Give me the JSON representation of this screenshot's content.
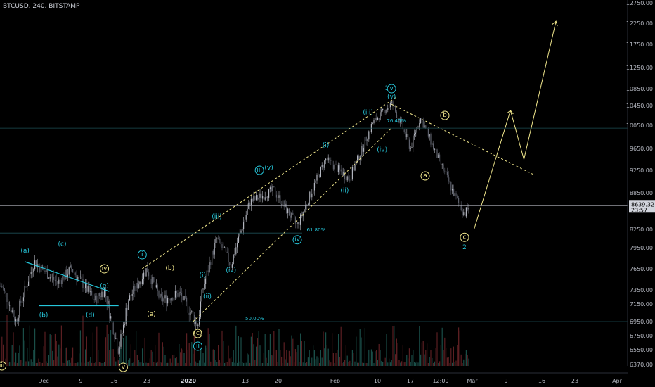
{
  "header": {
    "title": "BTCUSD, 240, BITSTAMP"
  },
  "price_box": {
    "value": "8639.32",
    "countdown": "23:57"
  },
  "colors": {
    "background": "#000000",
    "up": "#b2b5be",
    "down": "#5d606b",
    "vol_up": "#1e5c55",
    "vol_down": "#6b2428",
    "cyan": "#26c6da",
    "yellow": "#f0e68c",
    "label_cyan": "#26c6da",
    "price_line": "#b2b5be"
  },
  "chart_data": {
    "type": "candlestick",
    "title": "BTCUSD, 240, BITSTAMP",
    "ylim": [
      6300,
      12800
    ],
    "y_ticks": [
      "12750.00",
      "12250.00",
      "11750.00",
      "11250.00",
      "10850.00",
      "10450.00",
      "10050.00",
      "9650.00",
      "9250.00",
      "8850.00",
      "8250.00",
      "7950.00",
      "7650.00",
      "7350.00",
      "7150.00",
      "6950.00",
      "6750.00",
      "6550.00",
      "6370.00"
    ],
    "x_ticks": [
      "Dec",
      "9",
      "16",
      "23",
      "2020",
      "13",
      "20",
      "Feb",
      "10",
      "17",
      "12:00",
      "Mar",
      "9",
      "16",
      "23",
      "Apr"
    ],
    "last_price": 8639.32,
    "price_path": [
      {
        "date": "Nov 22",
        "price": 7400
      },
      {
        "date": "Nov 25",
        "price": 6950
      },
      {
        "date": "Nov 29",
        "price": 7750
      },
      {
        "date": "Dec 4",
        "price": 7450
      },
      {
        "date": "Dec 7",
        "price": 7650
      },
      {
        "date": "Dec 12",
        "price": 7200
      },
      {
        "date": "Dec 14",
        "price": 7350
      },
      {
        "date": "Dec 17",
        "price": 6550
      },
      {
        "date": "Dec 19",
        "price": 7200
      },
      {
        "date": "Dec 23",
        "price": 7650
      },
      {
        "date": "Dec 26",
        "price": 7200
      },
      {
        "date": "Dec 30",
        "price": 7300
      },
      {
        "date": "Jan 3",
        "price": 6900
      },
      {
        "date": "Jan 4",
        "price": 7350
      },
      {
        "date": "Jan 7",
        "price": 8100
      },
      {
        "date": "Jan 10",
        "price": 7700
      },
      {
        "date": "Jan 14",
        "price": 8700
      },
      {
        "date": "Jan 19",
        "price": 8900
      },
      {
        "date": "Jan 24",
        "price": 8300
      },
      {
        "date": "Jan 30",
        "price": 9450
      },
      {
        "date": "Feb 4",
        "price": 9100
      },
      {
        "date": "Feb 9",
        "price": 10100
      },
      {
        "date": "Feb 13",
        "price": 10500
      },
      {
        "date": "Feb 17",
        "price": 9650
      },
      {
        "date": "Feb 19",
        "price": 10200
      },
      {
        "date": "Feb 22",
        "price": 9600
      },
      {
        "date": "Feb 26",
        "price": 8800
      },
      {
        "date": "Feb 28",
        "price": 8500
      },
      {
        "date": "Feb 29",
        "price": 8639
      }
    ],
    "projection": [
      {
        "date": "Mar 1",
        "price": 8250
      },
      {
        "date": "Mar 9",
        "price": 10350
      },
      {
        "date": "Mar 12",
        "price": 9450
      },
      {
        "date": "Mar 19",
        "price": 12300
      }
    ],
    "fib_levels": [
      {
        "label": "76.40%",
        "price": 10080
      },
      {
        "label": "61.80%",
        "price": 8190
      },
      {
        "label": "50.00%",
        "price": 6950
      }
    ],
    "annotations": [
      {
        "text": "(a)",
        "color": "cyan",
        "date": "Nov 27",
        "price": 7900
      },
      {
        "text": "(b)",
        "color": "cyan",
        "date": "Dec 1",
        "price": 7020
      },
      {
        "text": "(c)",
        "color": "cyan",
        "date": "Dec 5",
        "price": 8000
      },
      {
        "text": "(d)",
        "color": "cyan",
        "date": "Dec 11",
        "price": 7020
      },
      {
        "text": "(e)",
        "color": "cyan",
        "date": "Dec 14",
        "price": 7400
      },
      {
        "text": "iv",
        "color": "yellow",
        "circle": true,
        "date": "Dec 14",
        "price": 7650
      },
      {
        "text": "iii",
        "color": "yellow",
        "circle": true,
        "date": "Nov 22",
        "price": 6350
      },
      {
        "text": "v",
        "color": "yellow",
        "circle": true,
        "date": "Dec 18",
        "price": 6330
      },
      {
        "text": "i",
        "color": "cyan",
        "circle": true,
        "date": "Dec 22",
        "price": 7850
      },
      {
        "text": "(a)",
        "color": "yellow",
        "date": "Dec 24",
        "price": 7030
      },
      {
        "text": "(b)",
        "color": "yellow",
        "date": "Dec 28",
        "price": 7650
      },
      {
        "text": "(c)",
        "color": "yellow",
        "circle": true,
        "date": "Jan 3",
        "price": 6780
      },
      {
        "text": "ii",
        "color": "cyan",
        "circle": true,
        "date": "Jan 3",
        "price": 6600
      },
      {
        "text": "(i)",
        "color": "cyan",
        "date": "Jan 4",
        "price": 7550
      },
      {
        "text": "(ii)",
        "color": "cyan",
        "date": "Jan 5",
        "price": 7250
      },
      {
        "text": "(iii)",
        "color": "cyan",
        "date": "Jan 7",
        "price": 8450
      },
      {
        "text": "(iv)",
        "color": "cyan",
        "date": "Jan 10",
        "price": 7620
      },
      {
        "text": "iii",
        "color": "cyan",
        "circle": true,
        "date": "Jan 16",
        "price": 9250
      },
      {
        "text": "(v)",
        "color": "cyan",
        "date": "Jan 18",
        "price": 9290
      },
      {
        "text": "iv",
        "color": "cyan",
        "circle": true,
        "date": "Jan 24",
        "price": 8080
      },
      {
        "text": "61.80%",
        "color": "cyan",
        "date": "Jan 26",
        "price": 8190,
        "fib": true
      },
      {
        "text": "(i)",
        "color": "cyan",
        "date": "Jan 30",
        "price": 9700
      },
      {
        "text": "(ii)",
        "color": "cyan",
        "date": "Feb 3",
        "price": 8880
      },
      {
        "text": "(iii)",
        "color": "cyan",
        "date": "Feb 8",
        "price": 10300
      },
      {
        "text": "(iv)",
        "color": "cyan",
        "date": "Feb 11",
        "price": 9620
      },
      {
        "text": "(v)",
        "color": "cyan",
        "date": "Feb 13",
        "price": 10650
      },
      {
        "text": "1",
        "color": "cyan",
        "big": true,
        "date": "Feb 12",
        "price": 10850
      },
      {
        "text": "v",
        "color": "cyan",
        "circle": true,
        "date": "Feb 13",
        "price": 10850
      },
      {
        "text": "76.40%",
        "color": "cyan",
        "date": "Feb 12",
        "price": 10080,
        "fib": true
      },
      {
        "text": "a",
        "color": "yellow",
        "circle": true,
        "date": "Feb 20",
        "price": 9150
      },
      {
        "text": "b",
        "color": "yellow",
        "circle": true,
        "date": "Feb 24",
        "price": 10250
      },
      {
        "text": "c",
        "color": "yellow",
        "circle": true,
        "date": "Feb 28",
        "price": 8120
      },
      {
        "text": "2",
        "color": "cyan",
        "big": true,
        "date": "Feb 28",
        "price": 7950
      },
      {
        "text": "50.00%",
        "color": "cyan",
        "date": "Jan 13",
        "price": 6950,
        "fib": true
      }
    ]
  }
}
